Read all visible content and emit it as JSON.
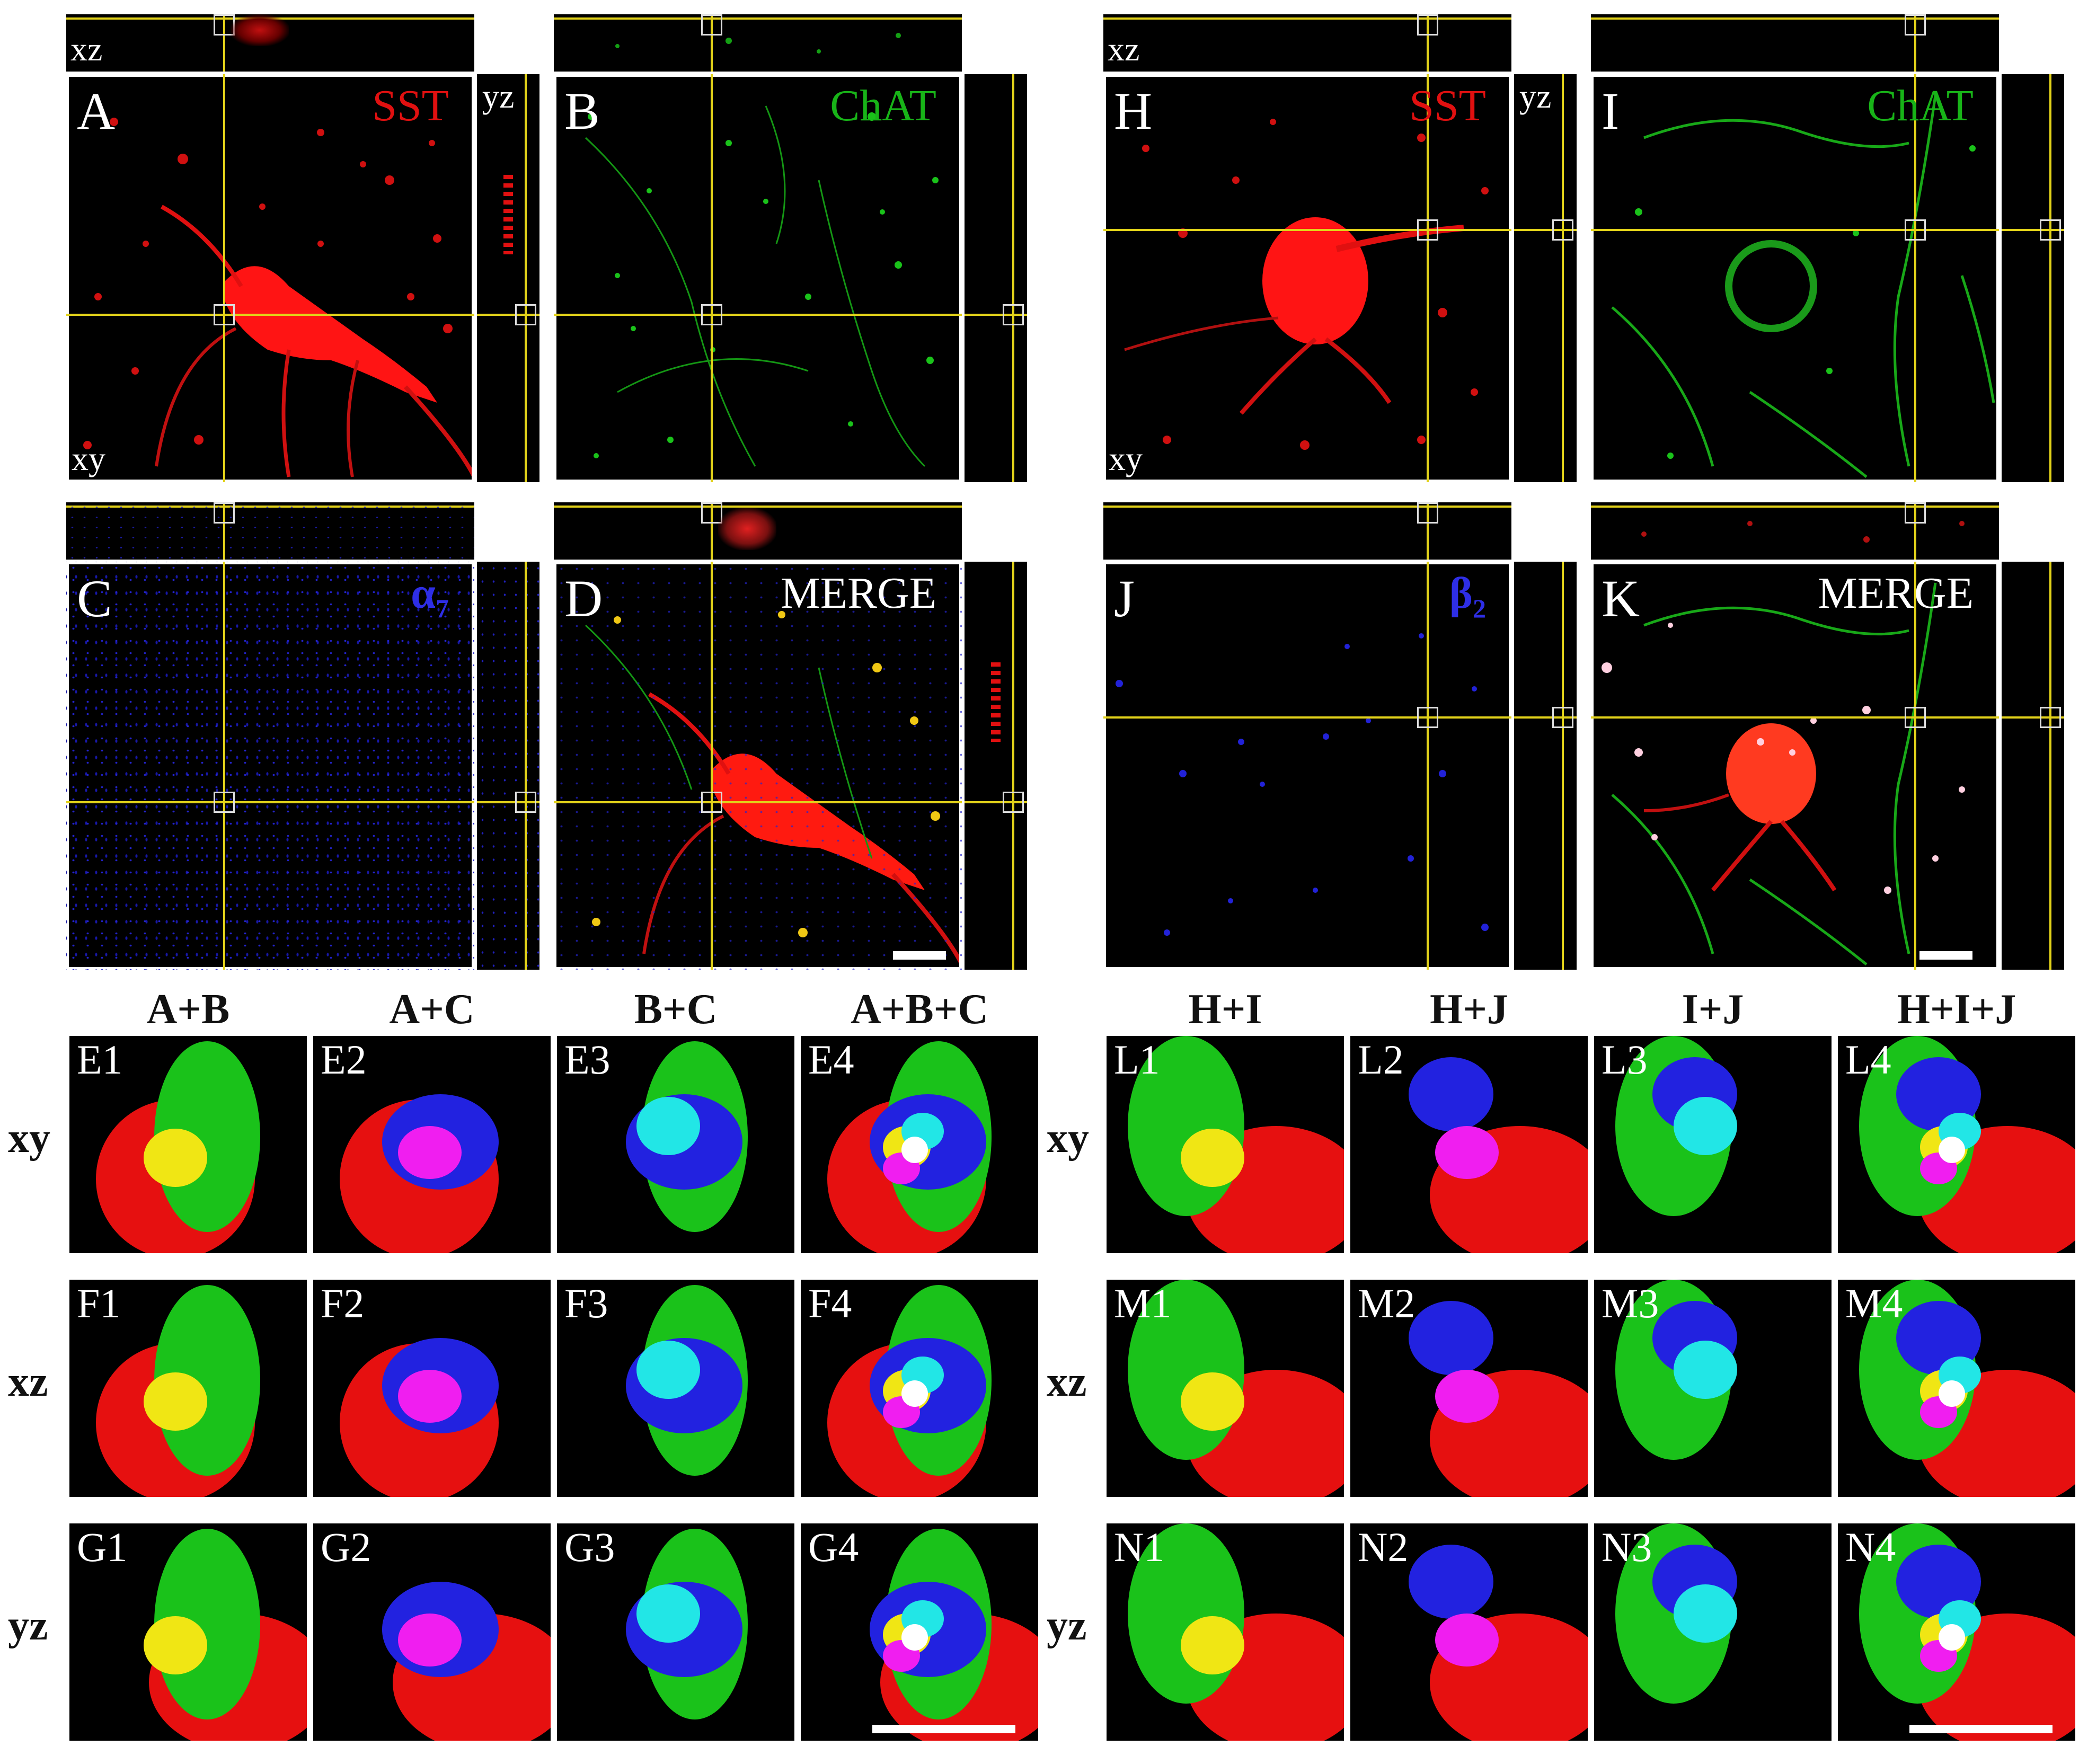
{
  "figure": {
    "left_group": {
      "panels": [
        {
          "id": "A",
          "channel": "SST",
          "channel_color": "#e01010",
          "xz_label": "xz",
          "yz_label": "yz",
          "xy_label": "xy"
        },
        {
          "id": "B",
          "channel": "ChAT",
          "channel_color": "#18b418"
        },
        {
          "id": "C",
          "channel": "α",
          "channel_sub": "7",
          "channel_color": "#2e2ee6"
        },
        {
          "id": "D",
          "channel": "MERGE",
          "channel_color": "#ffffff"
        }
      ],
      "column_headers": [
        "A+B",
        "A+C",
        "B+C",
        "A+B+C"
      ],
      "row_labels": [
        "xy",
        "xz",
        "yz"
      ],
      "tile_rows": [
        [
          "E1",
          "E2",
          "E3",
          "E4"
        ],
        [
          "F1",
          "F2",
          "F3",
          "F4"
        ],
        [
          "G1",
          "G2",
          "G3",
          "G4"
        ]
      ]
    },
    "right_group": {
      "panels": [
        {
          "id": "H",
          "channel": "SST",
          "channel_color": "#e01010",
          "xz_label": "xz",
          "yz_label": "yz",
          "xy_label": "xy"
        },
        {
          "id": "I",
          "channel": "ChAT",
          "channel_color": "#18b418"
        },
        {
          "id": "J",
          "channel": "β",
          "channel_sub": "2",
          "channel_color": "#2e2ee6"
        },
        {
          "id": "K",
          "channel": "MERGE",
          "channel_color": "#ffffff"
        }
      ],
      "column_headers": [
        "H+I",
        "H+J",
        "I+J",
        "H+I+J"
      ],
      "row_labels": [
        "xy",
        "xz",
        "yz"
      ],
      "tile_rows": [
        [
          "L1",
          "L2",
          "L3",
          "L4"
        ],
        [
          "M1",
          "M2",
          "M3",
          "M4"
        ],
        [
          "N1",
          "N2",
          "N3",
          "N4"
        ]
      ]
    },
    "colors": {
      "crosshair": "#e2d21a",
      "red": "#e61010",
      "green": "#1ac21a",
      "blue": "#2222e0",
      "yellow": "#f0e614",
      "magenta": "#f01ef0",
      "cyan": "#22e6e6",
      "white": "#ffffff"
    }
  }
}
